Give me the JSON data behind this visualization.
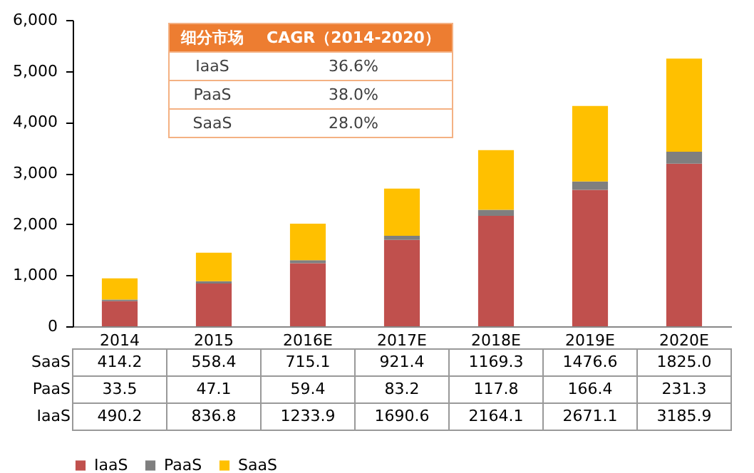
{
  "chart_data": {
    "type": "bar",
    "stacked": true,
    "categories": [
      "2014",
      "2015",
      "2016E",
      "2017E",
      "2018E",
      "2019E",
      "2020E"
    ],
    "series": [
      {
        "name": "IaaS",
        "color": "#c0504d",
        "values": [
          490.2,
          836.8,
          1233.9,
          1690.6,
          2164.1,
          2671.1,
          3185.9
        ],
        "value_labels": [
          "490.2",
          "836.8",
          "1233.9",
          "1690.6",
          "2164.1",
          "2671.1",
          "3185.9"
        ]
      },
      {
        "name": "PaaS",
        "color": "#7f7f7f",
        "values": [
          33.5,
          47.1,
          59.4,
          83.2,
          117.8,
          166.4,
          231.3
        ],
        "value_labels": [
          "33.5",
          "47.1",
          "59.4",
          "83.2",
          "117.8",
          "166.4",
          "231.3"
        ]
      },
      {
        "name": "SaaS",
        "color": "#ffc000",
        "values": [
          414.2,
          558.4,
          715.1,
          921.4,
          1169.3,
          1476.6,
          1825.0
        ],
        "value_labels": [
          "414.2",
          "558.4",
          "715.1",
          "921.4",
          "1169.3",
          "1476.6",
          "1825.0"
        ]
      }
    ],
    "ylim": [
      0,
      6000
    ],
    "yticks": [
      0,
      {
        "value": 1000,
        "label": "1,000"
      },
      {
        "value": 2000,
        "label": "2,000"
      },
      {
        "value": 3000,
        "label": "3,000"
      },
      {
        "value": 4000,
        "label": "4,000"
      },
      {
        "value": 5000,
        "label": "5,000"
      },
      {
        "value": 6000,
        "label": "6,000"
      }
    ],
    "legend": "bottom",
    "grid": false,
    "annotations": [
      "细分市场",
      "CAGR（2014-2020）",
      "IaaS",
      "36.6%",
      "PaaS",
      "38.0%",
      "SaaS",
      "28.0%"
    ]
  }
}
